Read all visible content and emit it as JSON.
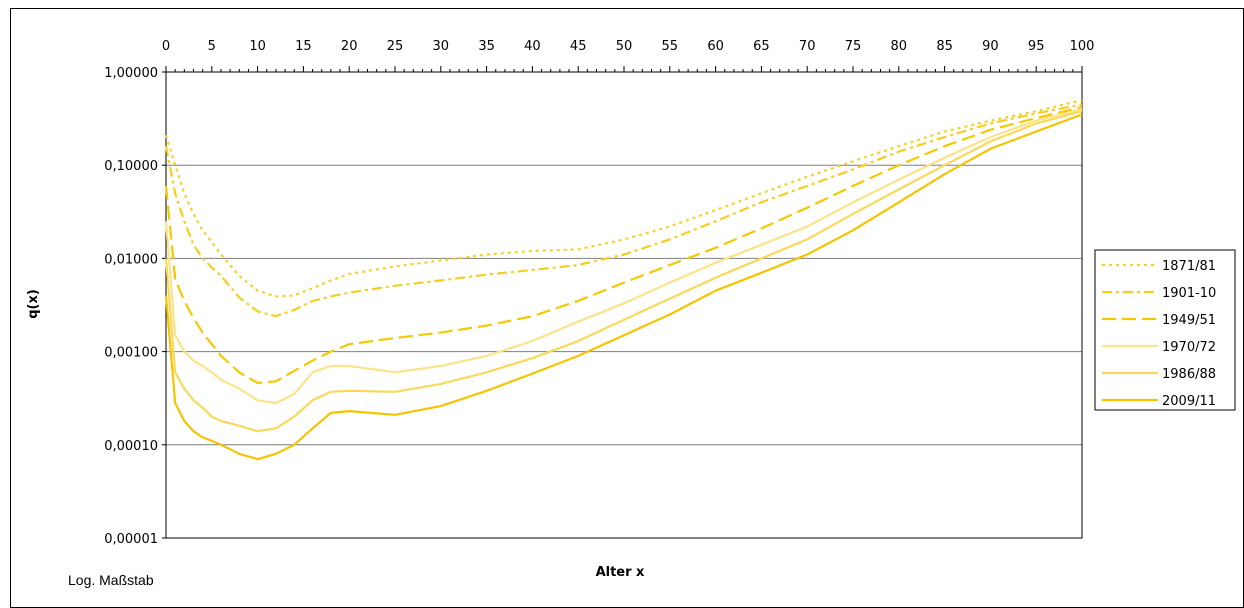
{
  "chart_data": {
    "type": "line",
    "xlabel": "Alter x",
    "ylabel": "q(x)",
    "note": "Log. Maßstab",
    "y_scale": "log",
    "xlim": [
      0,
      100
    ],
    "ylim": [
      1e-05,
      1
    ],
    "x_ticks": [
      "0",
      "5",
      "10",
      "15",
      "20",
      "25",
      "30",
      "35",
      "40",
      "45",
      "50",
      "55",
      "60",
      "65",
      "70",
      "75",
      "80",
      "85",
      "90",
      "95",
      "100"
    ],
    "y_ticks": [
      {
        "value": 1,
        "label": "1,00000"
      },
      {
        "value": 0.1,
        "label": "0,10000"
      },
      {
        "value": 0.01,
        "label": "0,01000"
      },
      {
        "value": 0.001,
        "label": "0,00100"
      },
      {
        "value": 0.0001,
        "label": "0,00010"
      },
      {
        "value": 1e-05,
        "label": "0,00001"
      }
    ],
    "grid": true,
    "legend_position": "right",
    "x": [
      0,
      1,
      2,
      3,
      4,
      5,
      6,
      8,
      10,
      12,
      14,
      16,
      18,
      20,
      25,
      30,
      35,
      40,
      45,
      50,
      55,
      60,
      65,
      70,
      75,
      80,
      85,
      90,
      95,
      100
    ],
    "series": [
      {
        "name": "1871/81",
        "color": "#F7D028",
        "dash": "3,4",
        "values": [
          0.21,
          0.1,
          0.05,
          0.03,
          0.02,
          0.015,
          0.011,
          0.0065,
          0.0045,
          0.0039,
          0.004,
          0.0048,
          0.0058,
          0.0068,
          0.0082,
          0.0095,
          0.011,
          0.012,
          0.0125,
          0.016,
          0.022,
          0.033,
          0.05,
          0.075,
          0.11,
          0.16,
          0.23,
          0.3,
          0.38,
          0.5
        ]
      },
      {
        "name": "1901-10",
        "color": "#F7CE20",
        "dash": "10,4,3,4",
        "values": [
          0.16,
          0.05,
          0.025,
          0.014,
          0.01,
          0.008,
          0.0065,
          0.0038,
          0.0027,
          0.0024,
          0.0028,
          0.0035,
          0.0039,
          0.0043,
          0.0051,
          0.0058,
          0.0067,
          0.0075,
          0.0085,
          0.011,
          0.016,
          0.025,
          0.04,
          0.06,
          0.09,
          0.14,
          0.2,
          0.28,
          0.36,
          0.45
        ]
      },
      {
        "name": "1949/51",
        "color": "#F5C800",
        "dash": "14,6",
        "values": [
          0.06,
          0.006,
          0.0035,
          0.0023,
          0.0016,
          0.0012,
          0.0009,
          0.0006,
          0.00046,
          0.00048,
          0.00062,
          0.0008,
          0.001,
          0.0012,
          0.0014,
          0.0016,
          0.0019,
          0.0024,
          0.0035,
          0.0055,
          0.0085,
          0.013,
          0.021,
          0.035,
          0.06,
          0.1,
          0.16,
          0.24,
          0.32,
          0.42
        ]
      },
      {
        "name": "1970/72",
        "color": "#FAE389",
        "dash": "",
        "values": [
          0.025,
          0.0015,
          0.001,
          0.0008,
          0.0007,
          0.0006,
          0.0005,
          0.0004,
          0.0003,
          0.00028,
          0.00035,
          0.0006,
          0.0007,
          0.0007,
          0.0006,
          0.0007,
          0.0009,
          0.0013,
          0.0021,
          0.0033,
          0.0055,
          0.009,
          0.014,
          0.022,
          0.04,
          0.07,
          0.12,
          0.2,
          0.3,
          0.4
        ]
      },
      {
        "name": "1986/88",
        "color": "#F8D95A",
        "dash": "",
        "values": [
          0.01,
          0.0006,
          0.0004,
          0.0003,
          0.00025,
          0.0002,
          0.00018,
          0.00016,
          0.00014,
          0.00015,
          0.0002,
          0.0003,
          0.00037,
          0.00038,
          0.00037,
          0.00045,
          0.0006,
          0.00085,
          0.0013,
          0.0022,
          0.0037,
          0.0062,
          0.01,
          0.016,
          0.03,
          0.055,
          0.1,
          0.18,
          0.28,
          0.38
        ]
      },
      {
        "name": "2009/11",
        "color": "#F5C400",
        "dash": "",
        "values": [
          0.004,
          0.00028,
          0.00018,
          0.00014,
          0.00012,
          0.00011,
          0.0001,
          8e-05,
          7e-05,
          8e-05,
          0.0001,
          0.00015,
          0.00022,
          0.00023,
          0.00021,
          0.00026,
          0.00038,
          0.00058,
          0.0009,
          0.0015,
          0.0025,
          0.0045,
          0.007,
          0.011,
          0.02,
          0.04,
          0.08,
          0.15,
          0.23,
          0.35
        ]
      }
    ]
  }
}
